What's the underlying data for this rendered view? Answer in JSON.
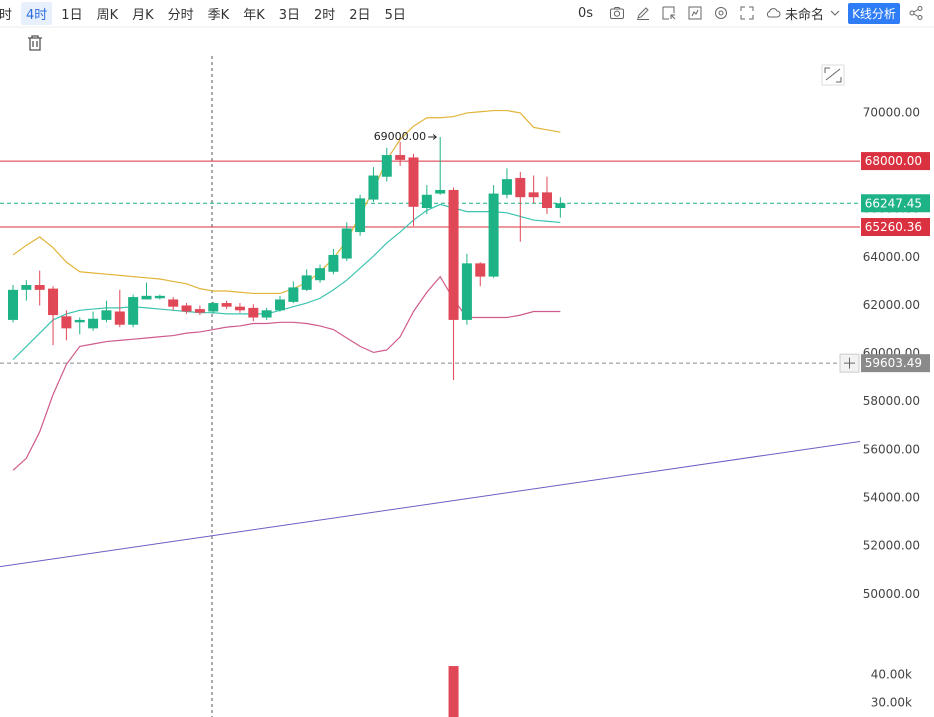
{
  "toolbar": {
    "periods": [
      "时",
      "4时",
      "1日",
      "周K",
      "月K",
      "分时",
      "季K",
      "年K",
      "3日",
      "2时",
      "2日",
      "5日"
    ],
    "active_period": 1,
    "timer": "0s",
    "layout_name": "未命名",
    "analysis_button": "K线分析"
  },
  "chart_data": {
    "type": "candlestick",
    "up_color": "#1db386",
    "down_color": "#e04757",
    "open": [
      61400,
      62650,
      62850,
      62700,
      61550,
      61300,
      61050,
      61400,
      61750,
      61200,
      62250,
      62300,
      62250,
      62000,
      61850,
      61750,
      62100,
      61950,
      61900,
      61500,
      61800,
      62150,
      62650,
      63050,
      63400,
      63950,
      65050,
      66400,
      67350,
      68250,
      68150,
      66050,
      66650,
      66800,
      61400,
      63750,
      63200,
      66600,
      67300,
      66700,
      66700,
      66050
    ],
    "high": [
      62850,
      63050,
      63450,
      62800,
      61800,
      61500,
      61750,
      62200,
      62650,
      62450,
      62950,
      62450,
      62350,
      62100,
      62000,
      62150,
      62200,
      62100,
      62050,
      61900,
      62400,
      63000,
      63500,
      63700,
      64350,
      65450,
      66600,
      67750,
      68550,
      68800,
      68300,
      67000,
      69000,
      66900,
      64150,
      63800,
      67000,
      67700,
      67550,
      67400,
      67350,
      66500
    ],
    "low": [
      61300,
      62200,
      62000,
      60350,
      60550,
      60800,
      60950,
      61300,
      61100,
      61100,
      62250,
      62250,
      61800,
      61650,
      61600,
      61650,
      61850,
      61700,
      61350,
      61400,
      61750,
      62100,
      62600,
      62950,
      63300,
      63850,
      64900,
      66300,
      67150,
      67800,
      65300,
      65800,
      66600,
      58900,
      61200,
      62800,
      63150,
      66450,
      64650,
      66250,
      65800,
      65650
    ],
    "close": [
      62650,
      62850,
      62650,
      61600,
      61050,
      61400,
      61450,
      61800,
      61200,
      62350,
      62400,
      62400,
      61950,
      61750,
      61700,
      62100,
      61950,
      61800,
      61500,
      61800,
      62250,
      62750,
      63250,
      63550,
      64100,
      65200,
      66450,
      67400,
      68250,
      68050,
      66100,
      66600,
      66800,
      61400,
      63750,
      63200,
      66650,
      67250,
      66500,
      66500,
      66050,
      66247.45
    ],
    "lines": [
      {
        "color": "#e2b43a",
        "values": [
          64100,
          64500,
          64850,
          64400,
          63800,
          63400,
          63350,
          63300,
          63250,
          63200,
          63150,
          63100,
          63000,
          62900,
          62700,
          62600,
          62600,
          62550,
          62500,
          62500,
          62500,
          62700,
          62950,
          63400,
          63950,
          64700,
          65750,
          66800,
          68050,
          68900,
          69450,
          69800,
          69800,
          69850,
          70000,
          70050,
          70100,
          70100,
          70000,
          69400,
          69300,
          69200
        ]
      },
      {
        "color": "#3cc4b0",
        "values": [
          59750,
          60300,
          60850,
          61400,
          61650,
          61800,
          61850,
          61900,
          61900,
          61950,
          61900,
          61850,
          61800,
          61750,
          61700,
          61700,
          61650,
          61650,
          61650,
          61650,
          61800,
          61950,
          62100,
          62300,
          62650,
          63050,
          63550,
          64050,
          64600,
          65050,
          65550,
          65950,
          66200,
          66050,
          65900,
          65900,
          65900,
          65850,
          65700,
          65550,
          65500,
          65450
        ]
      },
      {
        "color": "#cf5a8c",
        "values": [
          55150,
          55650,
          56750,
          58300,
          59550,
          60300,
          60400,
          60500,
          60550,
          60600,
          60650,
          60700,
          60750,
          60850,
          60900,
          61000,
          61100,
          61150,
          61250,
          61250,
          61300,
          61300,
          61250,
          61150,
          61000,
          60650,
          60300,
          60050,
          60150,
          60700,
          61750,
          62550,
          63200,
          62250,
          61500,
          61500,
          61500,
          61500,
          61600,
          61750,
          61750,
          61750
        ]
      }
    ],
    "trendline": {
      "color": "#6a5fc4",
      "start": 51150,
      "end": 56350
    },
    "hlines": [
      {
        "value": 68000,
        "label": "68000.00",
        "color": "#d9313f",
        "style": "solid"
      },
      {
        "value": 66247.45,
        "label": "66247.45",
        "color": "#1db386",
        "style": "dashed"
      },
      {
        "value": 65260.36,
        "label": "65260.36",
        "color": "#d9313f",
        "style": "solid"
      },
      {
        "value": 59603.49,
        "label": "59603.49",
        "color": "#8a8a8a",
        "style": "dashed"
      }
    ],
    "max_label": {
      "value": 69000,
      "label": "69000.00"
    },
    "ylim": [
      48100,
      72200
    ],
    "yticks": [
      {
        "value": 50000,
        "label": "50000.00"
      },
      {
        "value": 52000,
        "label": "52000.00"
      },
      {
        "value": 54000,
        "label": "54000.00"
      },
      {
        "value": 56000,
        "label": "56000.00"
      },
      {
        "value": 58000,
        "label": "58000.00"
      },
      {
        "value": 60000,
        "label": "60000.00"
      },
      {
        "value": 62000,
        "label": "62000.00"
      },
      {
        "value": 64000,
        "label": "64000.00"
      },
      {
        "value": 66000,
        "label": "66000.00"
      },
      {
        "value": 68000,
        "label": "68000.00"
      },
      {
        "value": 70000,
        "label": "70000.00"
      }
    ],
    "volume": {
      "values": [
        null,
        null,
        null,
        null,
        null,
        null,
        null,
        null,
        null,
        null,
        null,
        null,
        null,
        null,
        null,
        null,
        null,
        null,
        null,
        null,
        null,
        null,
        null,
        null,
        null,
        null,
        null,
        null,
        null,
        null,
        null,
        null,
        null,
        43200,
        null,
        null,
        null,
        null,
        null,
        null,
        null,
        null
      ],
      "ylim": [
        25000,
        52500
      ],
      "yticks": [
        {
          "value": 30000,
          "label": "30.00k"
        },
        {
          "value": 40000,
          "label": "40.00k"
        }
      ]
    }
  }
}
